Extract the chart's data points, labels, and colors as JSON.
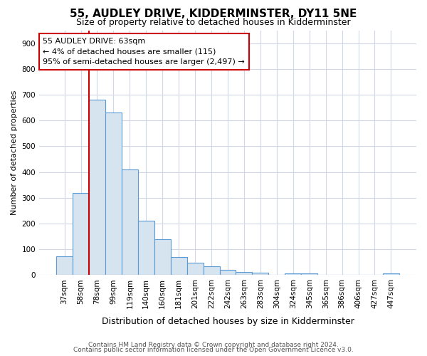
{
  "title1": "55, AUDLEY DRIVE, KIDDERMINSTER, DY11 5NE",
  "title2": "Size of property relative to detached houses in Kidderminster",
  "xlabel": "Distribution of detached houses by size in Kidderminster",
  "ylabel": "Number of detached properties",
  "categories": [
    "37sqm",
    "58sqm",
    "78sqm",
    "99sqm",
    "119sqm",
    "140sqm",
    "160sqm",
    "181sqm",
    "201sqm",
    "222sqm",
    "242sqm",
    "263sqm",
    "283sqm",
    "304sqm",
    "324sqm",
    "345sqm",
    "365sqm",
    "386sqm",
    "406sqm",
    "427sqm",
    "447sqm"
  ],
  "values": [
    72,
    320,
    682,
    631,
    410,
    210,
    138,
    70,
    48,
    35,
    20,
    13,
    10,
    0,
    8,
    8,
    0,
    0,
    0,
    0,
    8
  ],
  "bar_fill_color": "#d6e4f0",
  "bar_edge_color": "#5b9bd5",
  "vline_x": 1.5,
  "vline_color": "#cc0000",
  "annotation_text": "55 AUDLEY DRIVE: 63sqm\n← 4% of detached houses are smaller (115)\n95% of semi-detached houses are larger (2,497) →",
  "annotation_box_facecolor": "#ffffff",
  "annotation_box_edgecolor": "#cc0000",
  "ylim": [
    0,
    950
  ],
  "yticks": [
    0,
    100,
    200,
    300,
    400,
    500,
    600,
    700,
    800,
    900
  ],
  "footer1": "Contains HM Land Registry data © Crown copyright and database right 2024.",
  "footer2": "Contains public sector information licensed under the Open Government Licence v3.0.",
  "background_color": "#ffffff",
  "grid_color": "#d0d8e8",
  "title1_fontsize": 11,
  "title2_fontsize": 9,
  "xlabel_fontsize": 9,
  "ylabel_fontsize": 8,
  "tick_fontsize": 7.5,
  "annotation_fontsize": 8,
  "footer_fontsize": 6.5
}
